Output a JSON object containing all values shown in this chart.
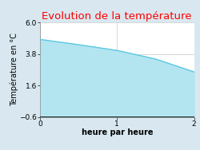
{
  "title": "Evolution de la température",
  "title_color": "#ff0000",
  "xlabel": "heure par heure",
  "ylabel": "Température en °C",
  "x_data": [
    0,
    0.5,
    1.0,
    1.5,
    2.0
  ],
  "y_data": [
    4.82,
    4.45,
    4.05,
    3.45,
    2.55
  ],
  "ylim": [
    -0.6,
    6.0
  ],
  "xlim": [
    0,
    2.0
  ],
  "yticks": [
    -0.6,
    1.6,
    3.8,
    6.0
  ],
  "xticks": [
    0,
    1,
    2
  ],
  "line_color": "#5bc8e0",
  "fill_color": "#b3e5f0",
  "fill_alpha": 1.0,
  "figure_bg": "#d9e8f0",
  "axes_bg_color": "#ffffff",
  "grid_color": "#c8c8c8",
  "title_fontsize": 9.5,
  "label_fontsize": 7,
  "tick_fontsize": 6.5
}
